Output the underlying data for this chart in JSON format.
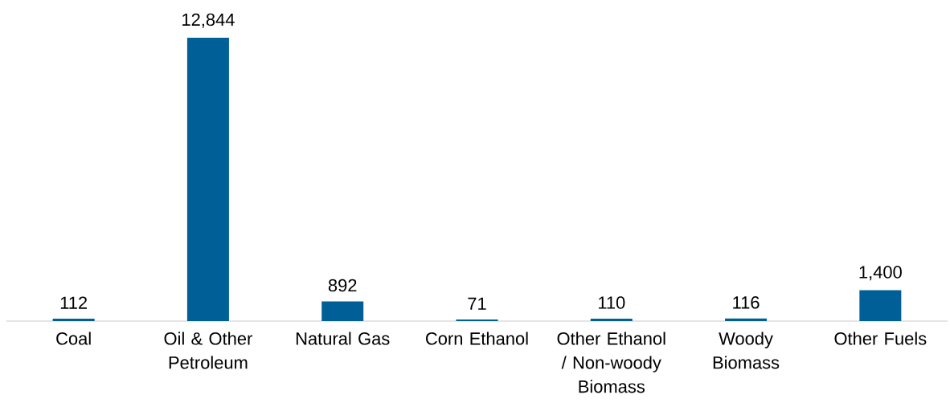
{
  "chart_data": {
    "type": "bar",
    "categories": [
      "Coal",
      "Oil & Other Petroleum",
      "Natural Gas",
      "Corn Ethanol",
      "Other Ethanol / Non-woody Biomass",
      "Woody Biomass",
      "Other Fuels"
    ],
    "values": [
      112,
      12844,
      892,
      71,
      110,
      116,
      1400
    ],
    "value_labels": [
      "112",
      "12,844",
      "892",
      "71",
      "110",
      "116",
      "1,400"
    ],
    "color": "#005f96"
  }
}
